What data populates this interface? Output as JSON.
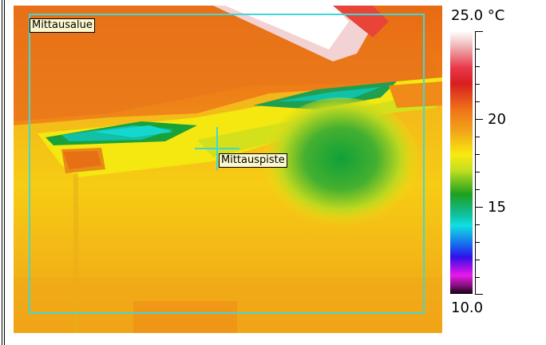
{
  "image": {
    "region_label": "Mittausalue",
    "spot_label": "Mittauspiste"
  },
  "scale": {
    "max_label": "25.0 °C",
    "min_label": "10.0",
    "tick_labels": [
      "20",
      "15"
    ]
  },
  "colors": {
    "roi": "#43d6d6",
    "label_bg": "#fbf7cf"
  }
}
